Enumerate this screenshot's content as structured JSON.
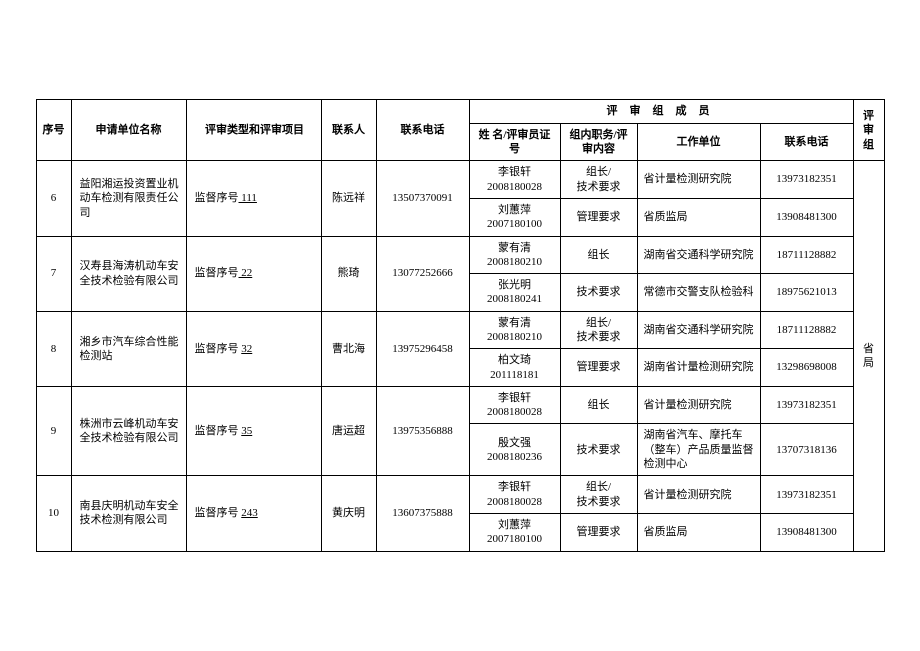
{
  "headers": {
    "seq": "序号",
    "unit": "申请单位名称",
    "type": "评审类型和评审项目",
    "contact": "联系人",
    "phone": "联系电话",
    "members_group": "评审组成员",
    "name_cert": "姓 名/评审员证号",
    "role_content": "组内职务/评审内容",
    "workunit": "工作单位",
    "contact_phone": "联系电话",
    "review_group": "评审组"
  },
  "group_label": "省局",
  "rows": [
    {
      "seq": "6",
      "unit": "益阳湘运投资置业机动车检测有限责任公司",
      "type_prefix": "监督序号",
      "type_num": " 111",
      "contact": "陈远祥",
      "phone": "13507370091",
      "members": [
        {
          "name": "李银轩",
          "cert": "2008180028",
          "role": "组长/技术要求",
          "workunit": "省计量检测研究院",
          "cphone": "13973182351"
        },
        {
          "name": "刘蕙萍",
          "cert": "2007180100",
          "role": "管理要求",
          "workunit": "省质监局",
          "cphone": "13908481300"
        }
      ]
    },
    {
      "seq": "7",
      "unit": "汉寿县海涛机动车安全技术检验有限公司",
      "type_prefix": "监督序号",
      "type_num": " 22",
      "contact": "熊琦",
      "phone": "13077252666",
      "members": [
        {
          "name": "蒙有清",
          "cert": "2008180210",
          "role": "组长",
          "workunit": "湖南省交通科学研究院",
          "cphone": "18711128882"
        },
        {
          "name": "张光明",
          "cert": "2008180241",
          "role": "技术要求",
          "workunit": "常德市交警支队检验科",
          "cphone": "18975621013"
        }
      ]
    },
    {
      "seq": "8",
      "unit": "湘乡市汽车综合性能检测站",
      "type_prefix": "监督序号 ",
      "type_num": "32",
      "contact": "曹北海",
      "phone": "13975296458",
      "members": [
        {
          "name": "蒙有清",
          "cert": "2008180210",
          "role": "组长/技术要求",
          "workunit": "湖南省交通科学研究院",
          "cphone": "18711128882"
        },
        {
          "name": "柏文琦",
          "cert": "201118181",
          "role": "管理要求",
          "workunit": "湖南省计量检测研究院",
          "cphone": "13298698008"
        }
      ]
    },
    {
      "seq": "9",
      "unit": "株洲市云峰机动车安全技术检验有限公司",
      "type_prefix": "监督序号 ",
      "type_num": "35",
      "contact": "唐运超",
      "phone": "13975356888",
      "members": [
        {
          "name": "李银轩",
          "cert": "2008180028",
          "role": "组长",
          "workunit": "省计量检测研究院",
          "cphone": "13973182351"
        },
        {
          "name": "殷文强",
          "cert": "2008180236",
          "role": "技术要求",
          "workunit": "湖南省汽车、摩托车（整车）产品质量监督检测中心",
          "cphone": "13707318136"
        }
      ]
    },
    {
      "seq": "10",
      "unit": "南县庆明机动车安全技术检测有限公司",
      "type_prefix": "监督序号 ",
      "type_num": "243",
      "contact": "黄庆明",
      "phone": "13607375888",
      "members": [
        {
          "name": "李银轩",
          "cert": "2008180028",
          "role": "组长/技术要求",
          "workunit": "省计量检测研究院",
          "cphone": "13973182351"
        },
        {
          "name": "刘蕙萍",
          "cert": "2007180100",
          "role": "管理要求",
          "workunit": "省质监局",
          "cphone": "13908481300"
        }
      ]
    }
  ]
}
